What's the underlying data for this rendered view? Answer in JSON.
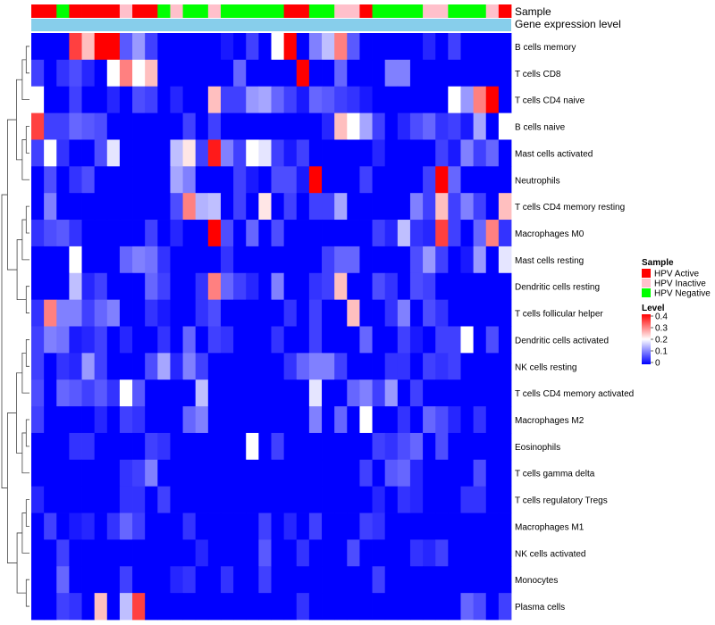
{
  "chart_data": {
    "type": "heatmap",
    "annotation_labels": [
      "Sample",
      "Gene expression level"
    ],
    "row_labels": [
      "B cells memory",
      "T cells CD8",
      "T cells CD4 naive",
      "B cells naive",
      "Mast cells activated",
      "Neutrophils",
      "T cells CD4 memory resting",
      "Macrophages M0",
      "Mast cells resting",
      "Dendritic cells resting",
      "T cells follicular helper",
      "Dendritic cells activated",
      "NK cells resting",
      "T cells CD4 memory activated",
      "Macrophages M2",
      "Eosinophils",
      "T cells gamma delta",
      "T cells regulatory  Tregs",
      "Macrophages M1",
      "NK cells activated",
      "Monocytes",
      "Plasma cells"
    ],
    "sample_groups": [
      "HPV Active",
      "HPV Active",
      "HPV Negative",
      "HPV Active",
      "HPV Active",
      "HPV Active",
      "HPV Active",
      "HPV Inactive",
      "HPV Active",
      "HPV Active",
      "HPV Negative",
      "HPV Inactive",
      "HPV Negative",
      "HPV Negative",
      "HPV Inactive",
      "HPV Negative",
      "HPV Negative",
      "HPV Negative",
      "HPV Negative",
      "HPV Negative",
      "HPV Active",
      "HPV Active",
      "HPV Negative",
      "HPV Negative",
      "HPV Inactive",
      "HPV Inactive",
      "HPV Active",
      "HPV Negative",
      "HPV Negative",
      "HPV Negative",
      "HPV Negative",
      "HPV Inactive",
      "HPV Inactive",
      "HPV Negative",
      "HPV Negative",
      "HPV Negative",
      "HPV Inactive",
      "HPV Active"
    ],
    "values": [
      [
        0,
        0,
        0,
        0.35,
        0.25,
        0.4,
        0.4,
        0.07,
        0.12,
        0.05,
        0,
        0,
        0,
        0,
        0,
        0.02,
        0,
        0.05,
        0,
        0.2,
        0.4,
        0,
        0.1,
        0.15,
        0.3,
        0.07,
        0,
        0,
        0,
        0,
        0,
        0.03,
        0,
        0.05,
        0,
        0,
        0,
        0
      ],
      [
        0.05,
        0,
        0.04,
        0.06,
        0.03,
        0,
        0.2,
        0.3,
        0.2,
        0.25,
        0,
        0,
        0,
        0,
        0,
        0,
        0.08,
        0,
        0,
        0,
        0,
        0.4,
        0,
        0,
        0.08,
        0,
        0,
        0,
        0.1,
        0.1,
        0,
        0,
        0,
        0,
        0,
        0,
        0,
        0
      ],
      [
        0.2,
        0,
        0,
        0.05,
        0,
        0,
        0.03,
        0,
        0.06,
        0.05,
        0,
        0.03,
        0,
        0,
        0.25,
        0.05,
        0.05,
        0.12,
        0.13,
        0.08,
        0.05,
        0.02,
        0.08,
        0.07,
        0.05,
        0.04,
        0.02,
        0,
        0,
        0,
        0,
        0,
        0,
        0.2,
        0.12,
        0.3,
        0.4,
        0
      ],
      [
        0.35,
        0.05,
        0.05,
        0.08,
        0.07,
        0.06,
        0,
        0,
        0,
        0,
        0,
        0,
        0.05,
        0,
        0.05,
        0,
        0,
        0,
        0,
        0,
        0,
        0,
        0,
        0.03,
        0.25,
        0.2,
        0.13,
        0.05,
        0,
        0.03,
        0.06,
        0.08,
        0.04,
        0.05,
        0.02,
        0.13,
        0,
        0.2
      ],
      [
        0.05,
        0.2,
        0.04,
        0,
        0,
        0.06,
        0.18,
        0,
        0,
        0,
        0,
        0.15,
        0.22,
        0.05,
        0.38,
        0.1,
        0.05,
        0.2,
        0.18,
        0.05,
        0.02,
        0.05,
        0,
        0,
        0,
        0,
        0,
        0.03,
        0,
        0,
        0,
        0,
        0.05,
        0.02,
        0.1,
        0.05,
        0.08,
        0
      ],
      [
        0,
        0.06,
        0,
        0.04,
        0.06,
        0,
        0,
        0,
        0,
        0,
        0,
        0.13,
        0.1,
        0,
        0,
        0,
        0.05,
        0.02,
        0,
        0.06,
        0.06,
        0.02,
        0.4,
        0,
        0,
        0,
        0.05,
        0,
        0,
        0,
        0,
        0.05,
        0.4,
        0.08,
        0,
        0,
        0,
        0
      ],
      [
        0,
        0.1,
        0,
        0,
        0,
        0,
        0,
        0,
        0,
        0,
        0,
        0.06,
        0.3,
        0.14,
        0.15,
        0,
        0.05,
        0,
        0.22,
        0,
        0.05,
        0,
        0.05,
        0.05,
        0.13,
        0,
        0,
        0,
        0,
        0,
        0.1,
        0.05,
        0.25,
        0.05,
        0.1,
        0.05,
        0,
        0.25
      ],
      [
        0.04,
        0.06,
        0.07,
        0.04,
        0,
        0,
        0,
        0,
        0,
        0.05,
        0,
        0.03,
        0,
        0,
        0.4,
        0.06,
        0,
        0.08,
        0,
        0.06,
        0,
        0,
        0,
        0,
        0,
        0,
        0,
        0.05,
        0.03,
        0.15,
        0.04,
        0.03,
        0.35,
        0.05,
        0,
        0.08,
        0.3,
        0.04
      ],
      [
        0,
        0,
        0,
        0.2,
        0,
        0,
        0,
        0.08,
        0.1,
        0.09,
        0.04,
        0,
        0,
        0,
        0,
        0.04,
        0,
        0,
        0,
        0,
        0,
        0,
        0,
        0.05,
        0.08,
        0.08,
        0,
        0,
        0,
        0,
        0.06,
        0.12,
        0.05,
        0,
        0.02,
        0.12,
        0,
        0.18
      ],
      [
        0,
        0,
        0,
        0.15,
        0.03,
        0.05,
        0,
        0,
        0,
        0.08,
        0.05,
        0,
        0,
        0.04,
        0.3,
        0.08,
        0.05,
        0.03,
        0,
        0.1,
        0,
        0,
        0.04,
        0.05,
        0.25,
        0,
        0,
        0.06,
        0.04,
        0,
        0.06,
        0.05,
        0,
        0,
        0,
        0,
        0,
        0
      ],
      [
        0.04,
        0.3,
        0.1,
        0.1,
        0.05,
        0.08,
        0.1,
        0,
        0,
        0.04,
        0.02,
        0,
        0,
        0.04,
        0.06,
        0,
        0,
        0,
        0,
        0,
        0.04,
        0,
        0.05,
        0,
        0,
        0.25,
        0,
        0,
        0.04,
        0.1,
        0,
        0.06,
        0.04,
        0,
        0,
        0,
        0,
        0
      ],
      [
        0.05,
        0.1,
        0.09,
        0.02,
        0.03,
        0.05,
        0,
        0.03,
        0,
        0,
        0.04,
        0,
        0.08,
        0,
        0.05,
        0.04,
        0,
        0,
        0,
        0.04,
        0,
        0,
        0.05,
        0,
        0,
        0,
        0.08,
        0,
        0,
        0.05,
        0.02,
        0,
        0.05,
        0.05,
        0.2,
        0,
        0.06,
        0
      ],
      [
        0.05,
        0,
        0.04,
        0.03,
        0.12,
        0.05,
        0,
        0,
        0,
        0.06,
        0.13,
        0.03,
        0.1,
        0.05,
        0,
        0,
        0,
        0,
        0,
        0,
        0.04,
        0.08,
        0.1,
        0.1,
        0.05,
        0,
        0,
        0,
        0.04,
        0.04,
        0,
        0.05,
        0.04,
        0.05,
        0,
        0,
        0,
        0
      ],
      [
        0.06,
        0,
        0.08,
        0.07,
        0.05,
        0.07,
        0.04,
        0.2,
        0.07,
        0,
        0,
        0,
        0,
        0.15,
        0,
        0,
        0,
        0,
        0,
        0,
        0,
        0,
        0.18,
        0,
        0,
        0.08,
        0.1,
        0.05,
        0.12,
        0,
        0.05,
        0,
        0,
        0,
        0,
        0,
        0,
        0
      ],
      [
        0.05,
        0,
        0,
        0,
        0,
        0.03,
        0,
        0.05,
        0.04,
        0,
        0,
        0,
        0.08,
        0.1,
        0,
        0,
        0,
        0,
        0,
        0,
        0,
        0,
        0.1,
        0,
        0.08,
        0,
        0.2,
        0,
        0,
        0.04,
        0,
        0.08,
        0.06,
        0.03,
        0,
        0.04,
        0,
        0
      ],
      [
        0,
        0,
        0,
        0.04,
        0.04,
        0,
        0,
        0,
        0,
        0.05,
        0.04,
        0,
        0,
        0,
        0,
        0,
        0,
        0.2,
        0,
        0.05,
        0,
        0,
        0,
        0,
        0,
        0,
        0,
        0.05,
        0.04,
        0.06,
        0.08,
        0,
        0.06,
        0,
        0,
        0,
        0,
        0
      ],
      [
        0,
        0,
        0,
        0,
        0,
        0,
        0,
        0.04,
        0.05,
        0.1,
        0,
        0,
        0,
        0,
        0,
        0,
        0,
        0,
        0,
        0,
        0,
        0,
        0,
        0,
        0,
        0,
        0.05,
        0,
        0.07,
        0.08,
        0.03,
        0,
        0,
        0,
        0,
        0.06,
        0,
        0
      ],
      [
        0.03,
        0,
        0,
        0,
        0,
        0,
        0,
        0.04,
        0.04,
        0,
        0.05,
        0,
        0,
        0,
        0,
        0,
        0,
        0,
        0,
        0,
        0,
        0,
        0,
        0,
        0,
        0,
        0,
        0.03,
        0,
        0.04,
        0.03,
        0,
        0,
        0,
        0.04,
        0.04,
        0,
        0
      ],
      [
        0,
        0.05,
        0,
        0.02,
        0.03,
        0,
        0.04,
        0.08,
        0.05,
        0,
        0,
        0,
        0.04,
        0,
        0,
        0,
        0,
        0,
        0.05,
        0,
        0.03,
        0,
        0.05,
        0,
        0,
        0,
        0.05,
        0.04,
        0,
        0,
        0,
        0,
        0,
        0,
        0,
        0,
        0,
        0
      ],
      [
        0,
        0,
        0.05,
        0,
        0,
        0,
        0,
        0,
        0,
        0,
        0,
        0,
        0,
        0.03,
        0,
        0,
        0,
        0,
        0.07,
        0,
        0,
        0.04,
        0,
        0,
        0,
        0.06,
        0,
        0,
        0,
        0,
        0.04,
        0.03,
        0.05,
        0,
        0,
        0,
        0,
        0
      ],
      [
        0,
        0,
        0.08,
        0,
        0,
        0,
        0,
        0.05,
        0,
        0,
        0,
        0.03,
        0.04,
        0,
        0,
        0.04,
        0,
        0,
        0.05,
        0,
        0,
        0,
        0,
        0,
        0,
        0,
        0,
        0.05,
        0,
        0,
        0,
        0,
        0,
        0,
        0,
        0,
        0,
        0
      ],
      [
        0,
        0,
        0.05,
        0.04,
        0,
        0.25,
        0,
        0.15,
        0.35,
        0,
        0,
        0,
        0,
        0,
        0,
        0,
        0,
        0,
        0,
        0,
        0,
        0.04,
        0,
        0,
        0,
        0,
        0,
        0,
        0,
        0,
        0,
        0,
        0,
        0,
        0.08,
        0.06,
        0,
        0.05
      ]
    ],
    "sample_legend": {
      "title": "Sample",
      "entries": [
        {
          "name": "HPV Active",
          "color": "#ff0000"
        },
        {
          "name": "HPV Inactive",
          "color": "#ffc0cb"
        },
        {
          "name": "HPV Negative",
          "color": "#00ff00"
        }
      ]
    },
    "level_legend": {
      "title": "Level",
      "ticks": [
        "0.4",
        "0.3",
        "0.2",
        "0.1",
        "0"
      ],
      "range": [
        0,
        0.4
      ]
    },
    "colors": {
      "low": "#0000ff",
      "mid": "#ffffff",
      "high": "#ff0000",
      "gene_expression_bar": "#87ceeb"
    }
  }
}
